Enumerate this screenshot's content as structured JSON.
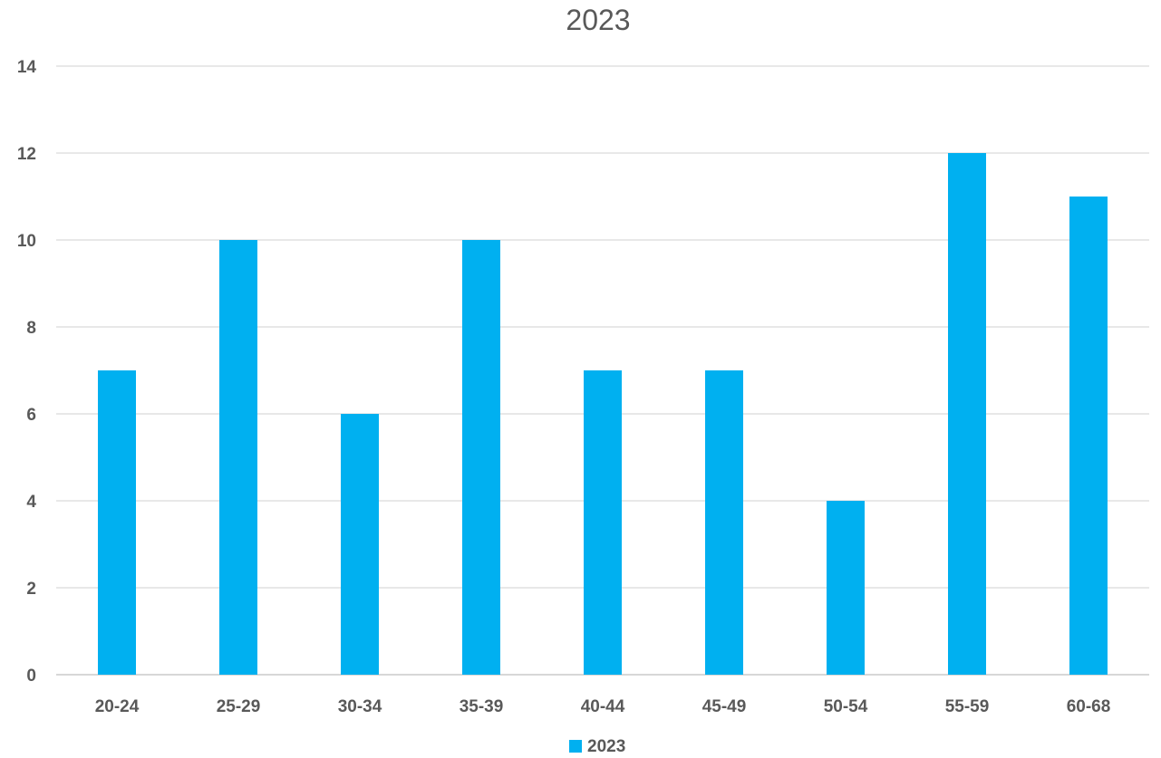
{
  "chart_data": {
    "type": "bar",
    "title": "2023",
    "xlabel": "",
    "ylabel": "",
    "categories": [
      "20-24",
      "25-29",
      "30-34",
      "35-39",
      "40-44",
      "45-49",
      "50-54",
      "55-59",
      "60-68"
    ],
    "series": [
      {
        "name": "2023",
        "color": "#00B0F0",
        "values": [
          7,
          10,
          6,
          10,
          7,
          7,
          4,
          12,
          11
        ]
      }
    ],
    "ylim": [
      0,
      14
    ],
    "yticks": [
      "0",
      "2",
      "4",
      "6",
      "8",
      "10",
      "12",
      "14"
    ],
    "grid": true,
    "legend": "bottom"
  }
}
